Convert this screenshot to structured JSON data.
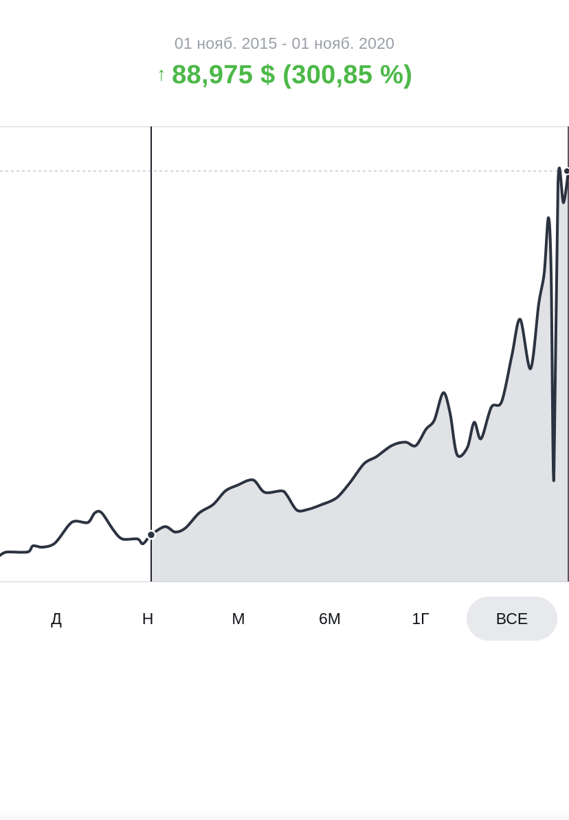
{
  "header": {
    "date_range": "01 нояб. 2015 - 01 нояб. 2020",
    "change_arrow": "↑",
    "change_text": "88,975 $ (300,85 %)",
    "change_color": "#4cb848"
  },
  "chart_data": {
    "type": "line",
    "title": "",
    "xlabel": "",
    "ylabel": "",
    "grid": false,
    "legend": "none",
    "line_color": "#2c3340",
    "fill_color": "#e1e2e6",
    "x_range": [
      0,
      827
    ],
    "y_range": [
      0,
      662
    ],
    "highlight_start_index": 15,
    "series": [
      {
        "values": [
          [
            0,
            38
          ],
          [
            10,
            43
          ],
          [
            40,
            43
          ],
          [
            48,
            52
          ],
          [
            62,
            50
          ],
          [
            80,
            56
          ],
          [
            100,
            82
          ],
          [
            110,
            88
          ],
          [
            128,
            86
          ],
          [
            138,
            100
          ],
          [
            148,
            100
          ],
          [
            165,
            75
          ],
          [
            178,
            62
          ],
          [
            200,
            62
          ],
          [
            208,
            55
          ],
          [
            220,
            68
          ],
          [
            240,
            80
          ],
          [
            255,
            72
          ],
          [
            270,
            78
          ],
          [
            290,
            100
          ],
          [
            310,
            112
          ],
          [
            328,
            132
          ],
          [
            345,
            140
          ],
          [
            368,
            148
          ],
          [
            385,
            130
          ],
          [
            410,
            132
          ],
          [
            418,
            125
          ],
          [
            432,
            104
          ],
          [
            448,
            105
          ],
          [
            468,
            112
          ],
          [
            490,
            122
          ],
          [
            510,
            145
          ],
          [
            530,
            172
          ],
          [
            548,
            182
          ],
          [
            570,
            198
          ],
          [
            590,
            203
          ],
          [
            605,
            198
          ],
          [
            620,
            222
          ],
          [
            632,
            235
          ],
          [
            645,
            275
          ],
          [
            655,
            245
          ],
          [
            665,
            185
          ],
          [
            680,
            195
          ],
          [
            690,
            232
          ],
          [
            700,
            208
          ],
          [
            715,
            254
          ],
          [
            730,
            262
          ],
          [
            745,
            330
          ],
          [
            757,
            382
          ],
          [
            772,
            310
          ],
          [
            784,
            405
          ],
          [
            792,
            450
          ],
          [
            798,
            530
          ],
          [
            802,
            450
          ],
          [
            806,
            148
          ],
          [
            812,
            580
          ],
          [
            820,
            552
          ],
          [
            827,
            598
          ]
        ]
      }
    ]
  },
  "range_tabs": {
    "items": [
      {
        "label": "Д",
        "active": false
      },
      {
        "label": "Н",
        "active": false
      },
      {
        "label": "М",
        "active": false
      },
      {
        "label": "6М",
        "active": false
      },
      {
        "label": "1Г",
        "active": false
      },
      {
        "label": "ВСЕ",
        "active": true
      }
    ]
  }
}
